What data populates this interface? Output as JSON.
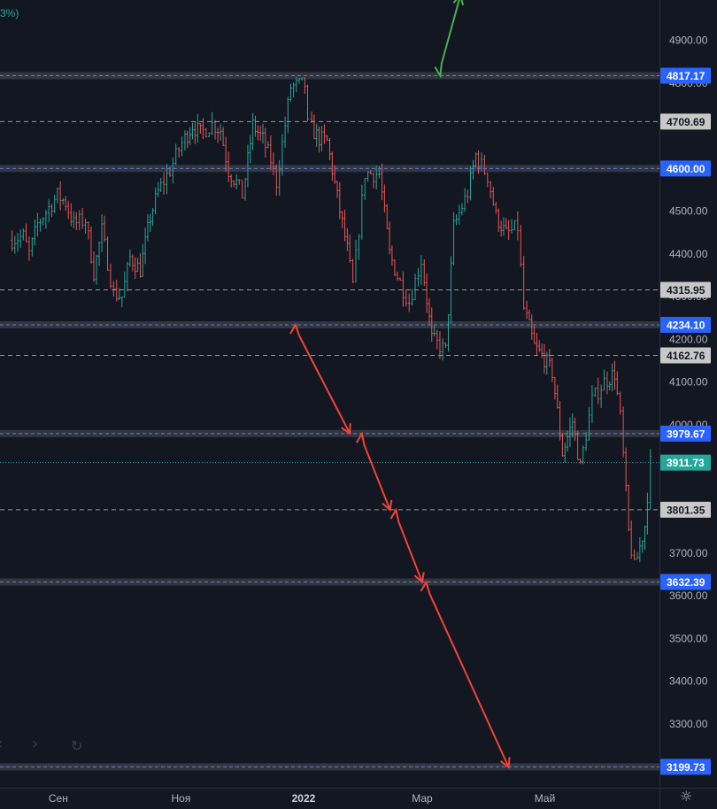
{
  "header": {
    "change_fragment": "3%)"
  },
  "chart_data": {
    "type": "candlestick",
    "title": "",
    "ylim": [
      3150,
      5010
    ],
    "y_ticks": [
      {
        "value": 4900,
        "label": "4900.00"
      },
      {
        "value": 4800,
        "label": "4800.00"
      },
      {
        "value": 4700,
        "label": "4700.00"
      },
      {
        "value": 4500,
        "label": "4500.00"
      },
      {
        "value": 4400,
        "label": "4400.00"
      },
      {
        "value": 4300,
        "label": "4300.00"
      },
      {
        "value": 4200,
        "label": "4200.00"
      },
      {
        "value": 4100,
        "label": "4100.00"
      },
      {
        "value": 4000,
        "label": "4000.00"
      },
      {
        "value": 3700,
        "label": "3700.00"
      },
      {
        "value": 3600,
        "label": "3600.00"
      },
      {
        "value": 3500,
        "label": "3500.00"
      },
      {
        "value": 3400,
        "label": "3400.00"
      },
      {
        "value": 3300,
        "label": "3300.00"
      }
    ],
    "x_ticks": [
      {
        "date": "2021-09-01",
        "label": "Сен",
        "bold": false
      },
      {
        "date": "2021-11-01",
        "label": "Ноя",
        "bold": false
      },
      {
        "date": "2022-01-01",
        "label": "2022",
        "bold": true
      },
      {
        "date": "2022-03-01",
        "label": "Мар",
        "bold": false
      },
      {
        "date": "2022-05-01",
        "label": "Май",
        "bold": false
      }
    ],
    "price_series": [
      [
        "2021-08-09",
        4432
      ],
      [
        "2021-08-16",
        4441
      ],
      [
        "2021-08-19",
        4400
      ],
      [
        "2021-08-23",
        4470
      ],
      [
        "2021-09-02",
        4537
      ],
      [
        "2021-09-06",
        4520
      ],
      [
        "2021-09-10",
        4470
      ],
      [
        "2021-09-16",
        4480
      ],
      [
        "2021-09-20",
        4357
      ],
      [
        "2021-09-24",
        4455
      ],
      [
        "2021-09-30",
        4308
      ],
      [
        "2021-10-04",
        4300
      ],
      [
        "2021-10-08",
        4391
      ],
      [
        "2021-10-13",
        4363
      ],
      [
        "2021-10-18",
        4486
      ],
      [
        "2021-10-22",
        4545
      ],
      [
        "2021-10-28",
        4596
      ],
      [
        "2021-11-03",
        4660
      ],
      [
        "2021-11-08",
        4701
      ],
      [
        "2021-11-12",
        4682
      ],
      [
        "2021-11-18",
        4704
      ],
      [
        "2021-11-22",
        4690
      ],
      [
        "2021-11-26",
        4595
      ],
      [
        "2021-11-30",
        4567
      ],
      [
        "2021-12-03",
        4538
      ],
      [
        "2021-12-08",
        4701
      ],
      [
        "2021-12-13",
        4668
      ],
      [
        "2021-12-17",
        4620
      ],
      [
        "2021-12-20",
        4568
      ],
      [
        "2021-12-27",
        4791
      ],
      [
        "2022-01-03",
        4796
      ],
      [
        "2022-01-05",
        4700
      ],
      [
        "2022-01-10",
        4670
      ],
      [
        "2022-01-14",
        4662
      ],
      [
        "2022-01-19",
        4532
      ],
      [
        "2022-01-24",
        4410
      ],
      [
        "2022-01-27",
        4326
      ],
      [
        "2022-02-02",
        4589
      ],
      [
        "2022-02-09",
        4587
      ],
      [
        "2022-02-14",
        4401
      ],
      [
        "2022-02-18",
        4348
      ],
      [
        "2022-02-24",
        4288
      ],
      [
        "2022-03-02",
        4386
      ],
      [
        "2022-03-07",
        4201
      ],
      [
        "2022-03-14",
        4173
      ],
      [
        "2022-03-18",
        4463
      ],
      [
        "2022-03-25",
        4543
      ],
      [
        "2022-03-29",
        4631
      ],
      [
        "2022-04-04",
        4582
      ],
      [
        "2022-04-08",
        4488
      ],
      [
        "2022-04-13",
        4446
      ],
      [
        "2022-04-19",
        4462
      ],
      [
        "2022-04-22",
        4272
      ],
      [
        "2022-04-27",
        4183
      ],
      [
        "2022-05-02",
        4155
      ],
      [
        "2022-05-06",
        4123
      ],
      [
        "2022-05-11",
        3935
      ],
      [
        "2022-05-16",
        4008
      ],
      [
        "2022-05-20",
        3901
      ],
      [
        "2022-05-26",
        4057
      ],
      [
        "2022-06-01",
        4101
      ],
      [
        "2022-06-06",
        4121
      ],
      [
        "2022-06-09",
        4017
      ],
      [
        "2022-06-13",
        3749
      ],
      [
        "2022-06-16",
        3666
      ],
      [
        "2022-06-21",
        3764
      ],
      [
        "2022-06-24",
        3911
      ]
    ],
    "horizontal_levels": [
      {
        "value": 4817.17,
        "label": "4817.17",
        "style": "solid",
        "color": "#4a90e2"
      },
      {
        "value": 4709.69,
        "label": "4709.69",
        "style": "dashed",
        "color": "#cccccc"
      },
      {
        "value": 4600.0,
        "label": "4600.00",
        "style": "solid",
        "color": "#4a90e2"
      },
      {
        "value": 4315.95,
        "label": "4315.95",
        "style": "dashed",
        "color": "#cccccc"
      },
      {
        "value": 4234.1,
        "label": "4234.10",
        "style": "solid",
        "color": "#4a90e2"
      },
      {
        "value": 4162.76,
        "label": "4162.76",
        "style": "dashed",
        "color": "#cccccc"
      },
      {
        "value": 3979.67,
        "label": "3979.67",
        "style": "solid",
        "color": "#4a90e2"
      },
      {
        "value": 3911.73,
        "label": "3911.73",
        "style": "dotted",
        "color": "#26a69a"
      },
      {
        "value": 3801.35,
        "label": "3801.35",
        "style": "dashed",
        "color": "#cccccc"
      },
      {
        "value": 3632.39,
        "label": "3632.39",
        "style": "solid",
        "color": "#4a90e2"
      },
      {
        "value": 3199.73,
        "label": "3199.73",
        "style": "solid",
        "color": "#4a90e2"
      }
    ],
    "annotations": [
      {
        "type": "up-arrow",
        "color": "#4caf50",
        "from": [
          "2022-03-10",
          4817
        ],
        "to": [
          "2022-03-20",
          5005
        ]
      },
      {
        "type": "down-arrow",
        "color": "#f44336",
        "from": [
          "2021-12-28",
          4234
        ],
        "to": [
          "2022-01-24",
          3980
        ]
      },
      {
        "type": "down-arrow",
        "color": "#f44336",
        "from": [
          "2022-01-30",
          3979
        ],
        "to": [
          "2022-02-13",
          3801
        ]
      },
      {
        "type": "down-arrow",
        "color": "#f44336",
        "from": [
          "2022-02-16",
          3801
        ],
        "to": [
          "2022-03-01",
          3632
        ]
      },
      {
        "type": "down-arrow",
        "color": "#f44336",
        "from": [
          "2022-03-03",
          3632
        ],
        "to": [
          "2022-04-13",
          3199
        ]
      }
    ],
    "colors": {
      "background": "#131722",
      "up": "#26a69a",
      "down": "#ef5350",
      "axis_text": "#b2b5be",
      "level_label_bg": "#2962ff"
    }
  }
}
